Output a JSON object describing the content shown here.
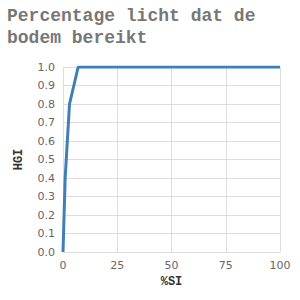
{
  "chart_data": {
    "type": "line",
    "title": "Percentage licht dat de bodem bereikt",
    "x_label": "%SI",
    "y_label": "HGI",
    "x": [
      0,
      1,
      3,
      7,
      100
    ],
    "series": [
      {
        "name": "HGI",
        "color": "#3f7fb5",
        "values": [
          0,
          0.4,
          0.8,
          1.0,
          1.0
        ]
      }
    ],
    "xlim": [
      0,
      100
    ],
    "xticks": [
      0,
      25,
      50,
      75,
      100
    ],
    "ylim": [
      0,
      1.0
    ],
    "yticks": [
      {
        "value": 0,
        "label": "0.0"
      },
      0.1,
      0.2,
      0.3,
      0.4,
      0.5,
      0.6,
      0.7,
      0.8,
      0.9,
      {
        "value": 1.0,
        "label": "1.0"
      }
    ],
    "grid": true
  }
}
